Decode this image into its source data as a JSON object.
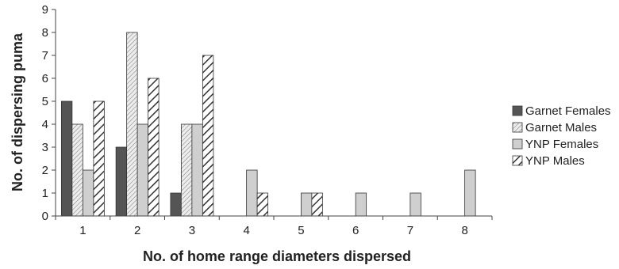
{
  "chart_data": {
    "type": "bar",
    "categories": [
      "1",
      "2",
      "3",
      "4",
      "5",
      "6",
      "7",
      "8"
    ],
    "series": [
      {
        "name": "Garnet Females",
        "values": [
          5,
          3,
          1,
          0,
          0,
          0,
          0,
          0
        ],
        "fill": "#555555",
        "pattern": "solid"
      },
      {
        "name": "Garnet Males",
        "values": [
          4,
          8,
          4,
          0,
          0,
          0,
          0,
          0
        ],
        "fill": "#e0e0e0",
        "pattern": "diagonal-thin"
      },
      {
        "name": "YNP Females",
        "values": [
          2,
          4,
          4,
          2,
          1,
          1,
          1,
          2
        ],
        "fill": "#cfcfcf",
        "pattern": "solid"
      },
      {
        "name": "YNP Males",
        "values": [
          5,
          6,
          7,
          1,
          1,
          0,
          0,
          0
        ],
        "fill": "#ffffff",
        "pattern": "diagonal-thick"
      }
    ],
    "title": "",
    "xlabel": "No. of home range diameters dispersed",
    "ylabel": "No. of dispersing puma",
    "ylim": [
      0,
      9
    ],
    "yticks": [
      "0",
      "1",
      "2",
      "3",
      "4",
      "5",
      "6",
      "7",
      "8",
      "9"
    ],
    "grid": false,
    "legend_position": "right"
  }
}
